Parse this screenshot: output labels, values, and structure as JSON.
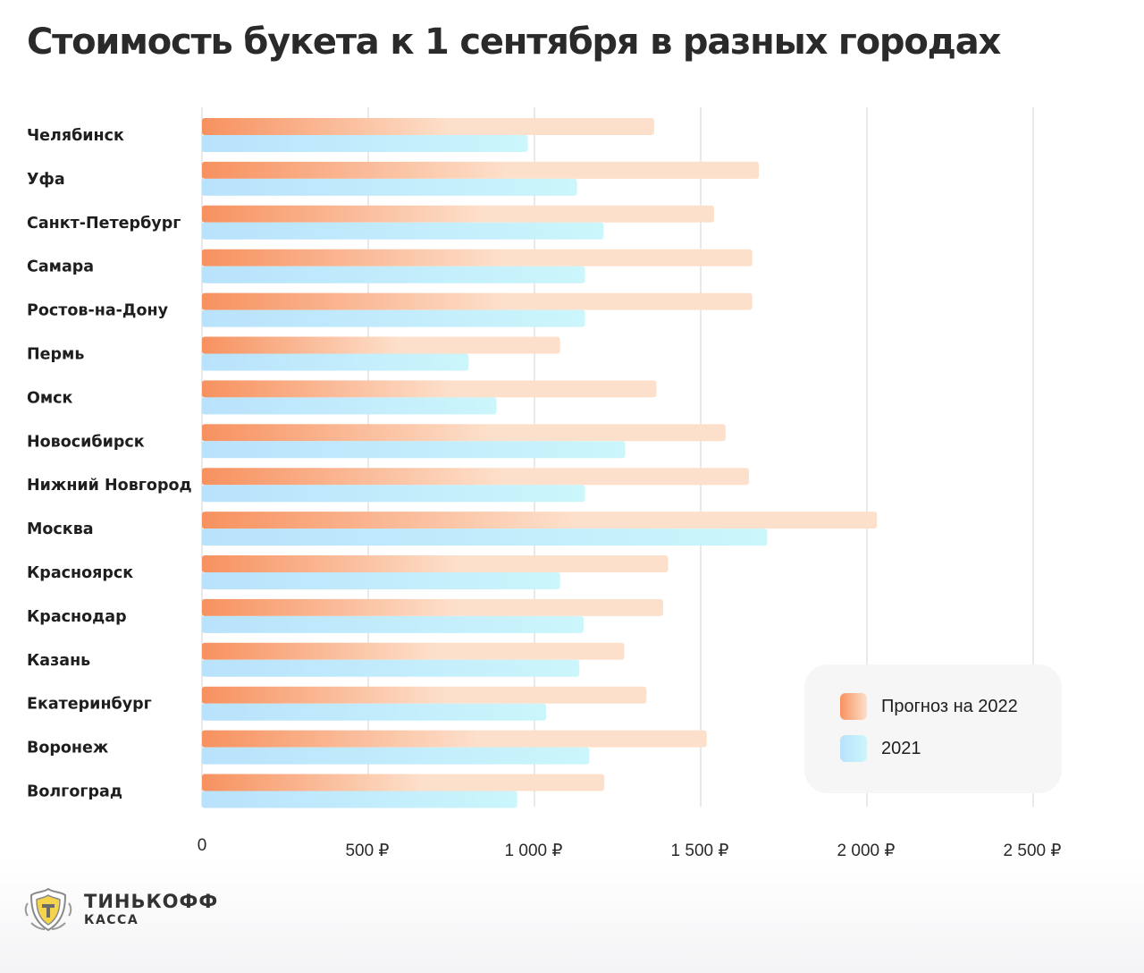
{
  "title": "Стоимость букета к 1 сентября в разных городах",
  "colors": {
    "forecast_start": "#f7915f",
    "forecast_end": "#fde0cb",
    "actual_start": "#b9e2fc",
    "actual_end": "#cbf6fb",
    "grid": "#d3d3d3"
  },
  "legend": {
    "forecast_label": "Прогноз на 2022",
    "actual_label": "2021"
  },
  "logo": {
    "name": "ТИНЬКОФФ",
    "sub": "КАССА",
    "icon": "tinkoff-shield-icon"
  },
  "chart_data": {
    "type": "bar",
    "orientation": "horizontal",
    "title": "Стоимость букета к 1 сентября в разных городах",
    "categories": [
      "Челябинск",
      "Уфа",
      "Санкт-Петербург",
      "Самара",
      "Ростов-на-Дону",
      "Пермь",
      "Омск",
      "Новосибирск",
      "Нижний Новгород",
      "Москва",
      "Красноярск",
      "Краснодар",
      "Казань",
      "Екатеринбург",
      "Воронеж",
      "Волгоград"
    ],
    "series": [
      {
        "name": "Прогноз на 2022",
        "values": [
          1360,
          1675,
          1540,
          1655,
          1655,
          1077,
          1367,
          1575,
          1645,
          2030,
          1402,
          1387,
          1270,
          1337,
          1518,
          1210
        ]
      },
      {
        "name": "2021",
        "values": [
          980,
          1128,
          1208,
          1152,
          1152,
          802,
          886,
          1273,
          1152,
          1700,
          1077,
          1148,
          1135,
          1035,
          1165,
          948
        ]
      }
    ],
    "xlim": [
      0,
      2500
    ],
    "xticks": [
      0,
      500,
      1000,
      1500,
      2000,
      2500
    ],
    "xtick_labels": [
      "0",
      "500 ₽",
      "1 000 ₽",
      "1 500 ₽",
      "2 000 ₽",
      "2 500 ₽"
    ],
    "xlabel": "",
    "ylabel": "",
    "grid": "vertical",
    "legend_position": "bottom-right"
  }
}
